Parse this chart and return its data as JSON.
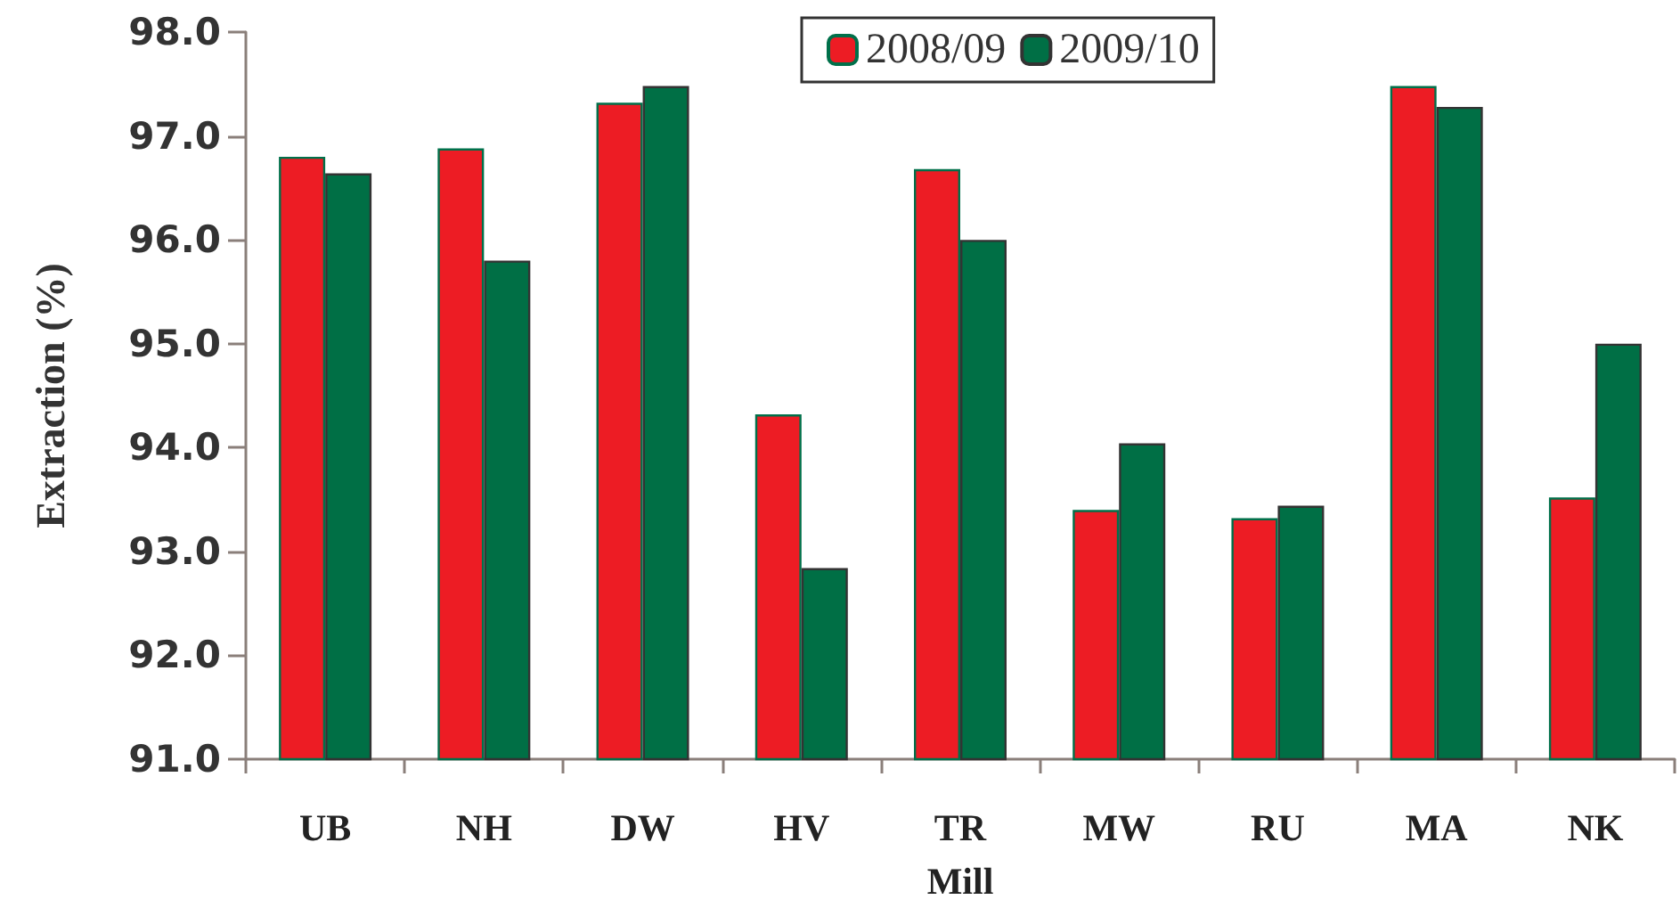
{
  "chart_data": {
    "type": "bar",
    "xlabel": "Mill",
    "ylabel": "Extraction (%)",
    "categories": [
      "UB",
      "NH",
      "DW",
      "HV",
      "TR",
      "MW",
      "RU",
      "MA",
      "NK"
    ],
    "series": [
      {
        "name": "2008/09",
        "color": "#ed1c24",
        "values": [
          96.8,
          96.88,
          97.32,
          94.32,
          96.68,
          93.4,
          93.32,
          97.48,
          93.52
        ]
      },
      {
        "name": "2009/10",
        "color": "#006f45",
        "values": [
          96.64,
          95.8,
          97.48,
          92.84,
          96.0,
          94.04,
          93.44,
          97.28,
          95.0
        ]
      }
    ],
    "ylim": [
      91,
      98
    ],
    "yticks": [
      {
        "value": 91,
        "label": "91.0"
      },
      {
        "value": 92,
        "label": "92.0"
      },
      {
        "value": 93,
        "label": "93.0"
      },
      {
        "value": 94,
        "label": "94.0"
      },
      {
        "value": 95,
        "label": "95.0"
      },
      {
        "value": 96,
        "label": "96.0"
      },
      {
        "value": 97,
        "label": "97.0"
      },
      {
        "value": 98,
        "label": "98.0"
      }
    ],
    "grid": false,
    "legend": "top"
  }
}
